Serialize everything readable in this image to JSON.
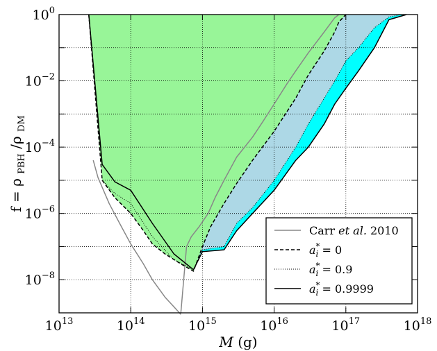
{
  "chart_data": {
    "type": "area",
    "xlabel_main": "M",
    "xlabel_unit": "(g)",
    "ylabel": "f = ρPBH/ρDM",
    "ylabel_lhs": "f = ρ",
    "ylabel_sub1": "PBH",
    "ylabel_mid": "/ρ",
    "ylabel_sub2": "DM",
    "x_scale": "log",
    "y_scale": "log",
    "xlim": [
      10000000000000.0,
      1e+18
    ],
    "ylim": [
      1e-09,
      1
    ],
    "grid": true,
    "grid_style": "dotted",
    "legend_placement": "lower-right",
    "x_ticks": [
      {
        "value": 10000000000000.0,
        "base": "10",
        "exp": "13"
      },
      {
        "value": 100000000000000.0,
        "base": "10",
        "exp": "14"
      },
      {
        "value": 1000000000000000.0,
        "base": "10",
        "exp": "15"
      },
      {
        "value": 1e+16,
        "base": "10",
        "exp": "16"
      },
      {
        "value": 1e+17,
        "base": "10",
        "exp": "17"
      },
      {
        "value": 1e+18,
        "base": "10",
        "exp": "18"
      }
    ],
    "y_ticks": [
      {
        "value": 1,
        "base": "10",
        "exp": "0"
      },
      {
        "value": 0.01,
        "base": "10",
        "exp": "−2"
      },
      {
        "value": 0.0001,
        "base": "10",
        "exp": "−4"
      },
      {
        "value": 1e-06,
        "base": "10",
        "exp": "−6"
      },
      {
        "value": 1e-08,
        "base": "10",
        "exp": "−8"
      }
    ],
    "series": [
      {
        "name": "Carr et al. 2010",
        "legend": {
          "pre": "Carr ",
          "italic": "et al.",
          "post": " 2010"
        },
        "style": "solid",
        "color": "#888888",
        "segments": [
          [
            [
              30000000000000.0,
              4e-05
            ],
            [
              35000000000000.0,
              1.2e-05
            ],
            [
              50000000000000.0,
              2e-06
            ],
            [
              70000000000000.0,
              5e-07
            ],
            [
              100000000000000.0,
              1.2e-07
            ],
            [
              150000000000000.0,
              3e-08
            ],
            [
              200000000000000.0,
              1e-08
            ],
            [
              300000000000000.0,
              3e-09
            ],
            [
              500000000000000.0,
              9e-10
            ]
          ],
          [
            [
              500000000000000.0,
              1e-09
            ],
            [
              600000000000000.0,
              1e-07
            ],
            [
              700000000000000.0,
              2e-07
            ],
            [
              900000000000000.0,
              4e-07
            ],
            [
              1200000000000000.0,
              1e-06
            ],
            [
              1500000000000000.0,
              3e-06
            ],
            [
              2000000000000000.0,
              1e-05
            ],
            [
              3000000000000000.0,
              5e-05
            ],
            [
              5000000000000000.0,
              0.0002
            ],
            [
              7000000000000000.0,
              0.0006
            ],
            [
              1e+16,
              0.002
            ],
            [
              1.5e+16,
              0.008
            ],
            [
              2e+16,
              0.02
            ],
            [
              3e+16,
              0.07
            ],
            [
              5e+16,
              0.3
            ],
            [
              7e+16,
              0.8
            ],
            [
              8e+16,
              1.0
            ]
          ]
        ]
      },
      {
        "name": "a*_i = 0",
        "legend": {
          "sym": "a",
          "sup": "*",
          "sub": "i",
          "val": " = 0"
        },
        "style": "dashed",
        "color": "#000000",
        "fill": "#98f598",
        "points": [
          [
            26000000000000.0,
            1.0
          ],
          [
            40000000000000.0,
            1e-05
          ],
          [
            60000000000000.0,
            3e-06
          ],
          [
            100000000000000.0,
            1e-06
          ],
          [
            150000000000000.0,
            3e-07
          ],
          [
            200000000000000.0,
            1.2e-07
          ],
          [
            300000000000000.0,
            6e-08
          ],
          [
            500000000000000.0,
            3e-08
          ],
          [
            750000000000000.0,
            1.8e-08
          ],
          [
            1000000000000000.0,
            1e-07
          ],
          [
            1300000000000000.0,
            4e-07
          ],
          [
            2000000000000000.0,
            2e-06
          ],
          [
            3000000000000000.0,
            8e-06
          ],
          [
            5000000000000000.0,
            4e-05
          ],
          [
            1e+16,
            0.0003
          ],
          [
            2e+16,
            0.003
          ],
          [
            3e+16,
            0.015
          ],
          [
            5e+16,
            0.08
          ],
          [
            7e+16,
            0.3
          ],
          [
            8e+16,
            0.6
          ],
          [
            1e+17,
            1.0
          ]
        ]
      },
      {
        "name": "a*_i = 0.9",
        "legend": {
          "sym": "a",
          "sup": "*",
          "sub": "i",
          "val": " = 0.9"
        },
        "style": "dotted",
        "color": "#000000",
        "fill": "#add8e6",
        "points": [
          [
            40000000000000.0,
            1e-05
          ],
          [
            60000000000000.0,
            4e-06
          ],
          [
            100000000000000.0,
            2e-06
          ],
          [
            200000000000000.0,
            2e-07
          ],
          [
            400000000000000.0,
            4e-08
          ],
          [
            750000000000000.0,
            2e-08
          ],
          [
            1000000000000000.0,
            8e-08
          ],
          [
            2000000000000000.0,
            1e-07
          ],
          [
            3000000000000000.0,
            5e-07
          ],
          [
            5000000000000000.0,
            1.5e-06
          ],
          [
            1e+16,
            1e-05
          ],
          [
            2e+16,
            0.0001
          ],
          [
            3e+16,
            0.0005
          ],
          [
            5e+16,
            0.003
          ],
          [
            7e+16,
            0.01
          ],
          [
            1e+17,
            0.04
          ],
          [
            1.5e+17,
            0.1
          ],
          [
            2.5e+17,
            0.4
          ],
          [
            4e+17,
            0.85
          ],
          [
            6e+17,
            1.0
          ]
        ]
      },
      {
        "name": "a*_i = 0.9999",
        "legend": {
          "sym": "a",
          "sup": "*",
          "sub": "i",
          "val": " = 0.9999"
        },
        "style": "solid",
        "color": "#000000",
        "fill": "#00ffff",
        "points": [
          [
            26000000000000.0,
            1.0
          ],
          [
            40000000000000.0,
            3e-05
          ],
          [
            60000000000000.0,
            9e-06
          ],
          [
            100000000000000.0,
            5e-06
          ],
          [
            200000000000000.0,
            5e-07
          ],
          [
            400000000000000.0,
            6e-08
          ],
          [
            750000000000000.0,
            2e-08
          ],
          [
            1000000000000000.0,
            7e-08
          ],
          [
            2000000000000000.0,
            8e-08
          ],
          [
            3000000000000000.0,
            3e-07
          ],
          [
            5000000000000000.0,
            1e-06
          ],
          [
            1e+16,
            5e-06
          ],
          [
            2e+16,
            4e-05
          ],
          [
            3e+16,
            0.0001
          ],
          [
            5e+16,
            0.0005
          ],
          [
            7e+16,
            0.002
          ],
          [
            1e+17,
            0.006
          ],
          [
            1.5e+17,
            0.02
          ],
          [
            2.5e+17,
            0.1
          ],
          [
            4e+17,
            0.7
          ],
          [
            7e+17,
            1.0
          ]
        ]
      }
    ]
  }
}
